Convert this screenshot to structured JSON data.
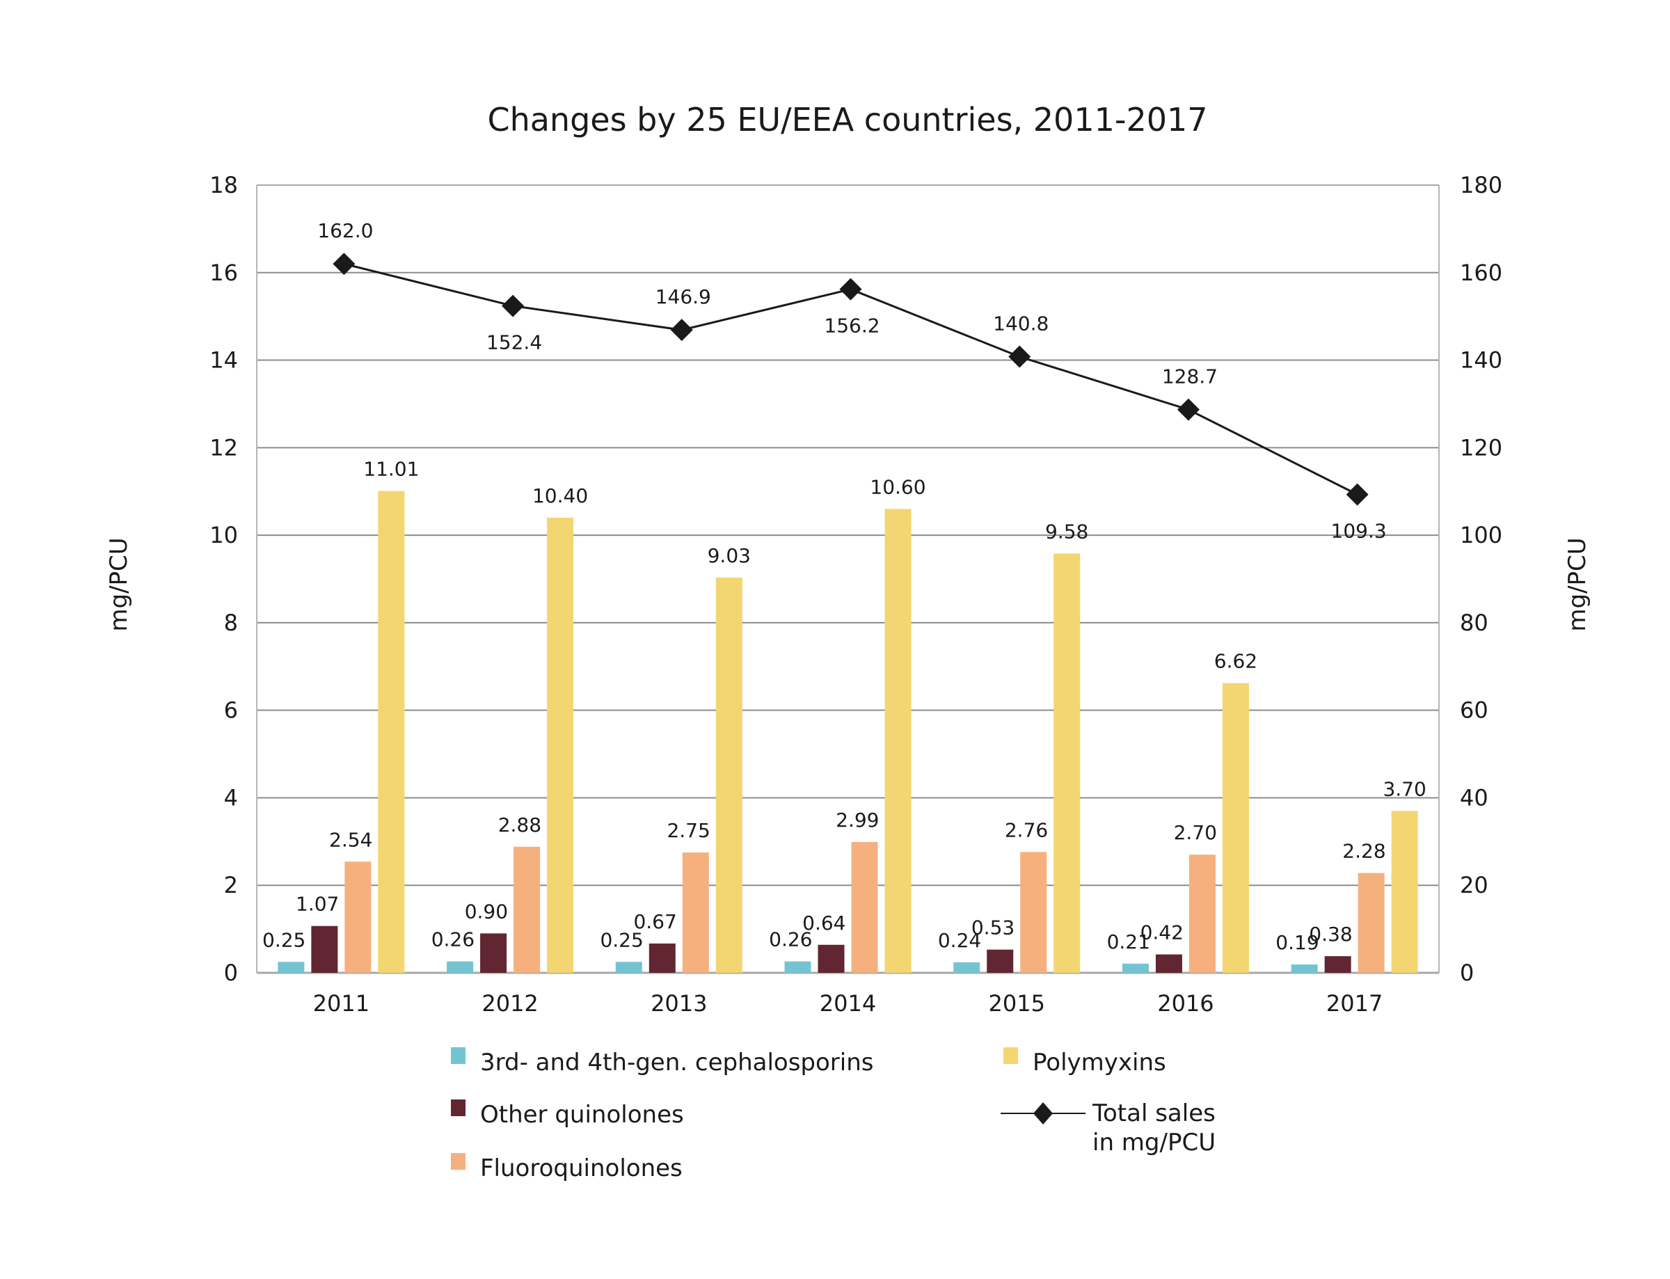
{
  "chart_data": {
    "type": "bar",
    "title": "Changes by 25 EU/EEA countries, 2011-2017",
    "categories": [
      "2011",
      "2012",
      "2013",
      "2014",
      "2015",
      "2016",
      "2017"
    ],
    "ylabel_left": "mg/PCU",
    "ylabel_right": "mg/PCU",
    "ylim_left": [
      0,
      18
    ],
    "ylim_right": [
      0,
      180
    ],
    "yticks_left": [
      "0",
      "2",
      "4",
      "6",
      "8",
      "10",
      "12",
      "14",
      "16",
      "18"
    ],
    "yticks_right": [
      "0",
      "20",
      "40",
      "60",
      "80",
      "100",
      "120",
      "140",
      "160",
      "180"
    ],
    "grid": true,
    "legend_position": "bottom",
    "series": [
      {
        "name": "3rd- and 4th-gen. cephalosporins",
        "type": "bar",
        "axis": "left",
        "color": "#74c3d3",
        "values": [
          0.25,
          0.26,
          0.25,
          0.26,
          0.24,
          0.21,
          0.19
        ],
        "labels": [
          "0.25",
          "0.26",
          "0.25",
          "0.26",
          "0.24",
          "0.21",
          "0.19"
        ]
      },
      {
        "name": "Other quinolones",
        "type": "bar",
        "axis": "left",
        "color": "#612631",
        "values": [
          1.07,
          0.9,
          0.67,
          0.64,
          0.53,
          0.42,
          0.38
        ],
        "labels": [
          "1.07",
          "0.90",
          "0.67",
          "0.64",
          "0.53",
          "0.42",
          "0.38"
        ]
      },
      {
        "name": "Fluoroquinolones",
        "type": "bar",
        "axis": "left",
        "color": "#f6b07e",
        "values": [
          2.54,
          2.88,
          2.75,
          2.99,
          2.76,
          2.7,
          2.28
        ],
        "labels": [
          "2.54",
          "2.88",
          "2.75",
          "2.99",
          "2.76",
          "2.70",
          "2.28"
        ]
      },
      {
        "name": "Polymyxins",
        "type": "bar",
        "axis": "left",
        "color": "#f3d671",
        "values": [
          11.01,
          10.4,
          9.03,
          10.6,
          9.58,
          6.62,
          3.7
        ],
        "labels": [
          "11.01",
          "10.40",
          "9.03",
          "10.60",
          "9.58",
          "6.62",
          "3.70"
        ]
      },
      {
        "name": "Total sales in mg/PCU",
        "type": "line",
        "axis": "right",
        "color": "#1a1a1a",
        "values": [
          162.0,
          152.4,
          146.9,
          156.2,
          140.8,
          128.7,
          109.3
        ],
        "labels": [
          "162.0",
          "152.4",
          "146.9",
          "156.2",
          "140.8",
          "128.7",
          "109.3"
        ]
      }
    ],
    "legend": [
      {
        "label": "3rd- and 4th-gen. cephalosporins",
        "kind": "box",
        "color": "#74c3d3"
      },
      {
        "label": "Other quinolones",
        "kind": "box",
        "color": "#612631"
      },
      {
        "label": "Fluoroquinolones",
        "kind": "box",
        "color": "#f6b07e"
      },
      {
        "label": "Polymyxins",
        "kind": "box",
        "color": "#f3d671"
      },
      {
        "label_lines": [
          "Total sales",
          "in mg/PCU"
        ],
        "kind": "line-diamond",
        "color": "#1a1a1a"
      }
    ]
  }
}
